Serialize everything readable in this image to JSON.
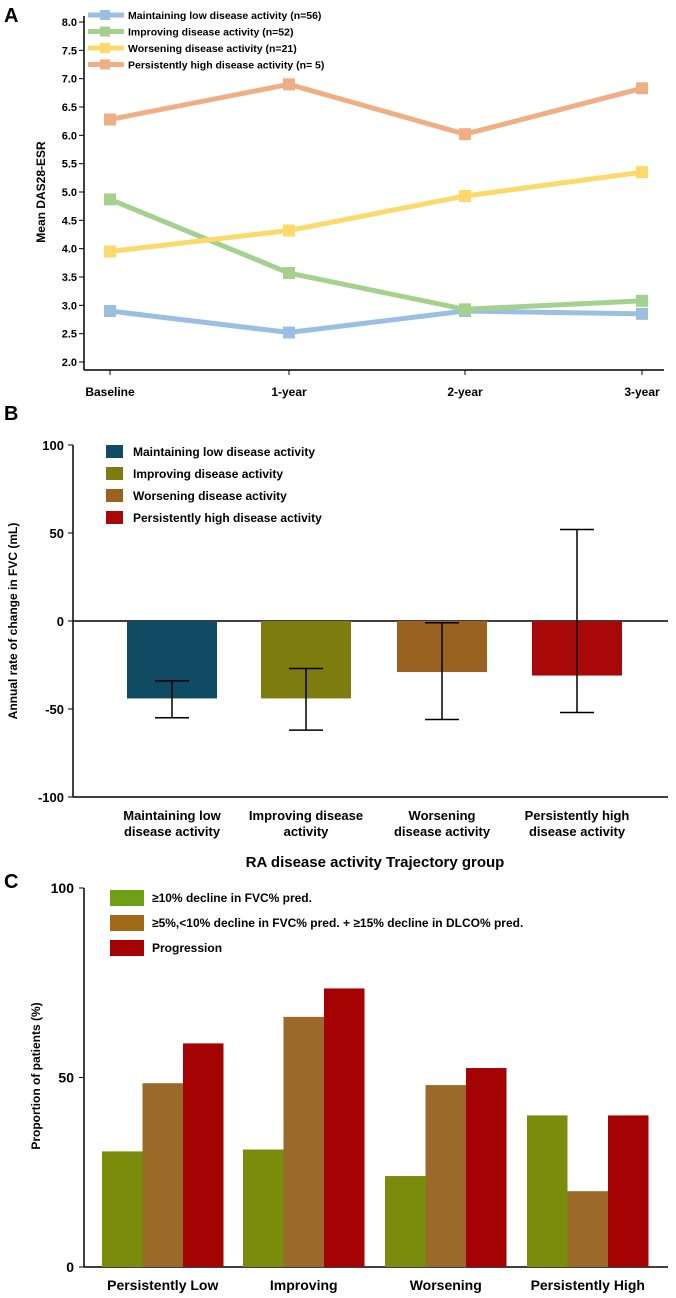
{
  "chart_data": [
    {
      "panel": "A",
      "type": "line",
      "ylabel": "Mean DAS28-ESR",
      "ylim": [
        2.0,
        8.0
      ],
      "yticks": [
        "2.0",
        "2.5",
        "3.0",
        "3.5",
        "4.0",
        "4.5",
        "5.0",
        "5.5",
        "6.0",
        "6.5",
        "7.0",
        "7.5",
        "8.0"
      ],
      "categories": [
        "Baseline",
        "1-year",
        "2-year",
        "3-year"
      ],
      "series": [
        {
          "name": "Maintaining low disease activity (n=56)",
          "color": "#9bbfe3",
          "values": [
            2.9,
            2.52,
            2.9,
            2.85
          ]
        },
        {
          "name": "Improving disease activity (n=52)",
          "color": "#a5d18e",
          "values": [
            4.87,
            3.57,
            2.93,
            3.08
          ]
        },
        {
          "name": "Worsening disease activity (n=21)",
          "color": "#fbd96b",
          "values": [
            3.95,
            4.32,
            4.93,
            5.35
          ]
        },
        {
          "name": "Persistently high disease activity (n= 5)",
          "color": "#f0ae84",
          "values": [
            6.28,
            6.9,
            6.02,
            6.83
          ]
        }
      ]
    },
    {
      "panel": "B",
      "type": "bar",
      "ylabel": "Annual rate of change in FVC (mL)",
      "xlabel": "RA disease activity Trajectory group",
      "ylim": [
        -100,
        100
      ],
      "yticks": [
        "-100",
        "-50",
        "0",
        "50",
        "100"
      ],
      "categories": [
        [
          "Maintaining low",
          "disease activity"
        ],
        [
          "Improving disease",
          "activity"
        ],
        [
          "Worsening",
          "disease activity"
        ],
        [
          "Persistently high",
          "disease activity"
        ]
      ],
      "series": [
        {
          "name": "Maintaining low disease activity",
          "color": "#0f4c64"
        },
        {
          "name": "Improving disease activity",
          "color": "#7d7d0f"
        },
        {
          "name": "Worsening disease activity",
          "color": "#9b6120"
        },
        {
          "name": "Persistently high disease activity",
          "color": "#a80808"
        }
      ],
      "values": [
        -44,
        -44,
        -29,
        -31
      ],
      "error_low": [
        -55,
        -62,
        -56,
        -52
      ],
      "error_high": [
        -34,
        -27,
        -1,
        52
      ]
    },
    {
      "panel": "C",
      "type": "bar",
      "ylabel": "Proportion of patients (%)",
      "ylim": [
        0,
        100
      ],
      "yticks": [
        "0",
        "50",
        "100"
      ],
      "categories": [
        "Persistently Low",
        "Improving",
        "Worsening",
        "Persistently High"
      ],
      "series": [
        {
          "name": "≥10% decline in FVC% pred.",
          "color": "#7a8c0c",
          "legend_color": "#6e9f14",
          "values": [
            30.5,
            31,
            24,
            40
          ]
        },
        {
          "name": "≥5%,<10% decline in FVC% pred. + ≥15% decline in DLCO% pred.",
          "color": "#9b6a28",
          "legend_color": "#a16a17",
          "values": [
            48.5,
            66,
            48,
            20
          ]
        },
        {
          "name": "Progression",
          "color": "#a50303",
          "legend_color": "#a50303",
          "values": [
            59,
            73.5,
            52.5,
            40
          ]
        }
      ]
    }
  ]
}
